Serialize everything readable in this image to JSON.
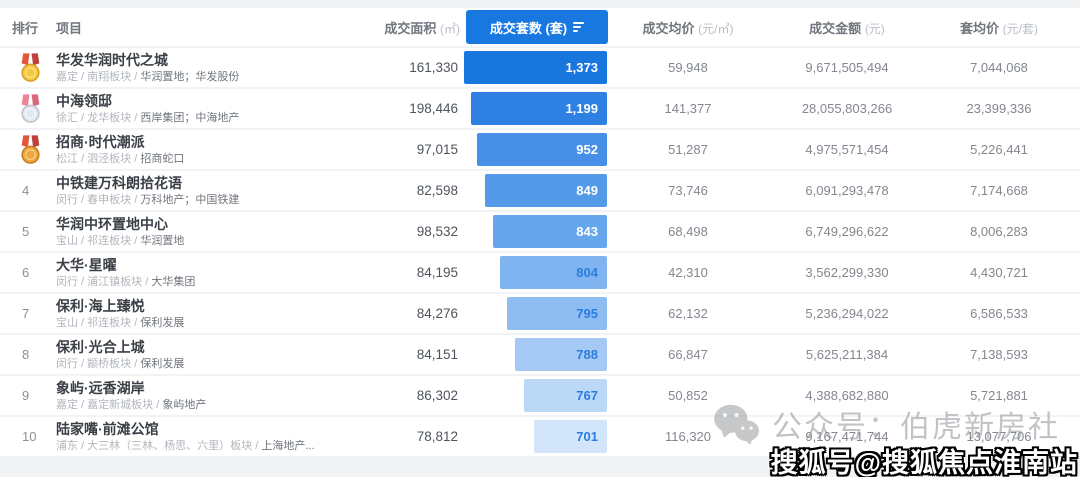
{
  "header": {
    "rank": "排行",
    "project": "项目",
    "area_label": "成交面积",
    "area_unit": "(㎡)",
    "units_label": "成交套数 (套)",
    "avg_price_label": "成交均价",
    "avg_price_unit": "(元/㎡)",
    "amount_label": "成交金额",
    "amount_unit": "(元)",
    "unit_avg_label": "套均价",
    "unit_avg_unit": "(元/套)",
    "accent_color": "#1878e0"
  },
  "rows": [
    {
      "rank": 1,
      "medal": "gold",
      "name": "华发华润时代之城",
      "location": "嘉定 / 南翔板块 / ",
      "developer": "华润置地；华发股份",
      "area": "161,330",
      "units": "1,373",
      "bar_pct": 100,
      "bar_color": "#1a76df",
      "bar_text": "#ffffff",
      "avg_price": "59,948",
      "amount": "9,671,505,494",
      "unit_avg": "7,044,068"
    },
    {
      "rank": 2,
      "medal": "silver",
      "name": "中海领邸",
      "location": "徐汇 / 龙华板块 / ",
      "developer": "西岸集团；中海地产",
      "area": "198,446",
      "units": "1,199",
      "bar_pct": 95,
      "bar_color": "#2e81e3",
      "bar_text": "#ffffff",
      "avg_price": "141,377",
      "amount": "28,055,803,266",
      "unit_avg": "23,399,336"
    },
    {
      "rank": 3,
      "medal": "bronze",
      "name": "招商·时代潮派",
      "location": "松江 / 泗泾板块 / ",
      "developer": "招商蛇口",
      "area": "97,015",
      "units": "952",
      "bar_pct": 91,
      "bar_color": "#4890e7",
      "bar_text": "#ffffff",
      "avg_price": "51,287",
      "amount": "4,975,571,454",
      "unit_avg": "5,226,441"
    },
    {
      "rank": 4,
      "medal": null,
      "name": "中铁建万科朗拾花语",
      "location": "闵行 / 春申板块 / ",
      "developer": "万科地产；中国铁建",
      "area": "82,598",
      "units": "849",
      "bar_pct": 85,
      "bar_color": "#539ae9",
      "bar_text": "#ffffff",
      "avg_price": "73,746",
      "amount": "6,091,293,478",
      "unit_avg": "7,174,668"
    },
    {
      "rank": 5,
      "medal": null,
      "name": "华润中环置地中心",
      "location": "宝山 / 祁连板块 / ",
      "developer": "华润置地",
      "area": "98,532",
      "units": "843",
      "bar_pct": 80,
      "bar_color": "#66a6ec",
      "bar_text": "#ffffff",
      "avg_price": "68,498",
      "amount": "6,749,296,622",
      "unit_avg": "8,006,283"
    },
    {
      "rank": 6,
      "medal": null,
      "name": "大华·星曜",
      "location": "闵行 / 浦江镇板块 / ",
      "developer": "大华集团",
      "area": "84,195",
      "units": "804",
      "bar_pct": 75,
      "bar_color": "#7fb4f0",
      "bar_text": "#2a7de0",
      "avg_price": "42,310",
      "amount": "3,562,299,330",
      "unit_avg": "4,430,721"
    },
    {
      "rank": 7,
      "medal": null,
      "name": "保利·海上臻悦",
      "location": "宝山 / 祁连板块 / ",
      "developer": "保利发展",
      "area": "84,276",
      "units": "795",
      "bar_pct": 70,
      "bar_color": "#8fbcf1",
      "bar_text": "#2a7de0",
      "avg_price": "62,132",
      "amount": "5,236,294,022",
      "unit_avg": "6,586,533"
    },
    {
      "rank": 8,
      "medal": null,
      "name": "保利·光合上城",
      "location": "闵行 / 颛桥板块 / ",
      "developer": "保利发展",
      "area": "84,151",
      "units": "788",
      "bar_pct": 64,
      "bar_color": "#a5c9f4",
      "bar_text": "#2a7de0",
      "avg_price": "66,847",
      "amount": "5,625,211,384",
      "unit_avg": "7,138,593"
    },
    {
      "rank": 9,
      "medal": null,
      "name": "象屿·远香湖岸",
      "location": "嘉定 / 嘉定新城板块 / ",
      "developer": "象屿地产",
      "area": "86,302",
      "units": "767",
      "bar_pct": 58,
      "bar_color": "#bcd8f7",
      "bar_text": "#2a7de0",
      "avg_price": "50,852",
      "amount": "4,388,682,880",
      "unit_avg": "5,721,881"
    },
    {
      "rank": 10,
      "medal": null,
      "name": "陆家嘴·前滩公馆",
      "location": "浦东 / 大三林（三林、杨思、六里）板块 / ",
      "developer": "上海地产...",
      "area": "78,812",
      "units": "701",
      "bar_pct": 51,
      "bar_color": "#d2e5fa",
      "bar_text": "#2a7de0",
      "avg_price": "116,320",
      "amount": "9,167,471,744",
      "unit_avg": "13,077,706"
    }
  ],
  "medal_colors": {
    "gold": {
      "ribbon": "#e4573d",
      "ribbon2": "#c13f3f",
      "face": "#f5c842",
      "edge": "#d89c1f",
      "ring": "#fde28c"
    },
    "silver": {
      "ribbon": "#ef8396",
      "ribbon2": "#d96a7e",
      "face": "#e3e8ef",
      "edge": "#b9c2cf",
      "ring": "#f7f9fc"
    },
    "bronze": {
      "ribbon": "#e4573d",
      "ribbon2": "#c13f3f",
      "face": "#eda63f",
      "edge": "#c5791d",
      "ring": "#f8cf8a"
    }
  },
  "watermarks": {
    "wechat_text": "公众号：伯虎新房社",
    "sohu_text": "搜狐号@搜狐焦点淮南站"
  }
}
